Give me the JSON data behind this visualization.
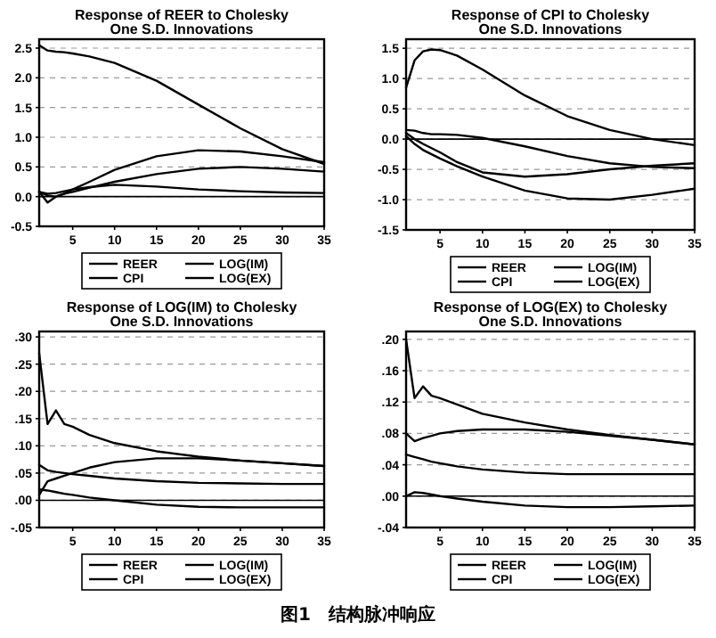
{
  "chart_data": [
    {
      "type": "line",
      "title": "Response of REER to Cholesky",
      "subtitle": "One S.D. Innovations",
      "x": [
        1,
        2,
        3,
        4,
        5,
        7,
        10,
        15,
        20,
        25,
        30,
        35
      ],
      "xlim": [
        1,
        35
      ],
      "xticks": [
        5,
        10,
        15,
        20,
        25,
        30,
        35
      ],
      "ylim": [
        -0.5,
        2.65
      ],
      "yticks": [
        {
          "value": -0.5,
          "label": "-0.5"
        },
        {
          "value": 0,
          "label": "0.0"
        },
        {
          "value": 0.5,
          "label": "0.5"
        },
        {
          "value": 1,
          "label": "1.0"
        },
        {
          "value": 1.5,
          "label": "1.5"
        },
        {
          "value": 2,
          "label": "2.0"
        },
        {
          "value": 2.5,
          "label": "2.5"
        }
      ],
      "grid": "y",
      "legend": "bottom",
      "ref_lines": [
        {
          "axis": "y",
          "value": 0
        }
      ],
      "series": [
        {
          "name": "REER",
          "color": "#000000",
          "values": [
            2.55,
            2.46,
            2.44,
            2.43,
            2.41,
            2.36,
            2.25,
            1.95,
            1.55,
            1.15,
            0.8,
            0.55
          ]
        },
        {
          "name": "CPI",
          "color": "#000000",
          "values": [
            0.08,
            0.05,
            0.06,
            0.09,
            0.12,
            0.16,
            0.2,
            0.17,
            0.12,
            0.09,
            0.07,
            0.06
          ]
        },
        {
          "name": "LOG(IM)",
          "color": "#000000",
          "values": [
            0.08,
            0.02,
            0.0,
            0.05,
            0.12,
            0.25,
            0.45,
            0.68,
            0.78,
            0.76,
            0.68,
            0.58
          ]
        },
        {
          "name": "LOG(EX)",
          "color": "#000000",
          "values": [
            0.08,
            -0.1,
            0.0,
            0.05,
            0.08,
            0.15,
            0.25,
            0.38,
            0.47,
            0.5,
            0.47,
            0.42
          ]
        }
      ]
    },
    {
      "type": "line",
      "title": "Response of CPI to Cholesky",
      "subtitle": "One S.D. Innovations",
      "x": [
        1,
        2,
        3,
        4,
        5,
        7,
        10,
        15,
        20,
        25,
        30,
        35
      ],
      "xlim": [
        1,
        35
      ],
      "xticks": [
        5,
        10,
        15,
        20,
        25,
        30,
        35
      ],
      "ylim": [
        -1.5,
        1.65
      ],
      "yticks": [
        {
          "value": -1.5,
          "label": "-1.5"
        },
        {
          "value": -1,
          "label": "-1.0"
        },
        {
          "value": -0.5,
          "label": "-0.5"
        },
        {
          "value": 0,
          "label": "0.0"
        },
        {
          "value": 0.5,
          "label": "0.5"
        },
        {
          "value": 1,
          "label": "1.0"
        },
        {
          "value": 1.5,
          "label": "1.5"
        }
      ],
      "grid": "y",
      "legend": "bottom",
      "ref_lines": [
        {
          "axis": "y",
          "value": 0
        }
      ],
      "series": [
        {
          "name": "REER",
          "color": "#000000",
          "values": [
            0.15,
            0.14,
            0.1,
            0.08,
            0.08,
            0.07,
            0.02,
            -0.12,
            -0.28,
            -0.4,
            -0.46,
            -0.48
          ]
        },
        {
          "name": "CPI",
          "color": "#000000",
          "values": [
            0.85,
            1.3,
            1.45,
            1.48,
            1.47,
            1.38,
            1.15,
            0.72,
            0.38,
            0.15,
            0.0,
            -0.1
          ]
        },
        {
          "name": "LOG(IM)",
          "color": "#000000",
          "values": [
            0.05,
            -0.08,
            -0.18,
            -0.25,
            -0.32,
            -0.45,
            -0.62,
            -0.85,
            -0.98,
            -1.0,
            -0.92,
            -0.82
          ]
        },
        {
          "name": "LOG(EX)",
          "color": "#000000",
          "values": [
            0.1,
            0.0,
            -0.08,
            -0.15,
            -0.22,
            -0.38,
            -0.55,
            -0.62,
            -0.58,
            -0.5,
            -0.44,
            -0.4
          ]
        }
      ]
    },
    {
      "type": "line",
      "title": "Response of LOG(IM) to Cholesky",
      "subtitle": "One S.D. Innovations",
      "x": [
        1,
        2,
        3,
        4,
        5,
        7,
        10,
        15,
        20,
        25,
        30,
        35
      ],
      "xlim": [
        1,
        35
      ],
      "xticks": [
        5,
        10,
        15,
        20,
        25,
        30,
        35
      ],
      "ylim": [
        -0.05,
        0.31
      ],
      "yticks": [
        {
          "value": -0.05,
          "label": "-.05"
        },
        {
          "value": 0,
          "label": ".00"
        },
        {
          "value": 0.05,
          "label": ".05"
        },
        {
          "value": 0.1,
          "label": ".10"
        },
        {
          "value": 0.15,
          "label": ".15"
        },
        {
          "value": 0.2,
          "label": ".20"
        },
        {
          "value": 0.25,
          "label": ".25"
        },
        {
          "value": 0.3,
          "label": ".30"
        }
      ],
      "grid": "y",
      "legend": "bottom",
      "ref_lines": [
        {
          "axis": "y",
          "value": 0
        }
      ],
      "series": [
        {
          "name": "REER",
          "color": "#000000",
          "values": [
            0.065,
            0.055,
            0.052,
            0.05,
            0.048,
            0.045,
            0.04,
            0.035,
            0.032,
            0.031,
            0.03,
            0.03
          ]
        },
        {
          "name": "CPI",
          "color": "#000000",
          "values": [
            0.02,
            0.018,
            0.015,
            0.012,
            0.01,
            0.005,
            0.0,
            -0.008,
            -0.012,
            -0.013,
            -0.013,
            -0.013
          ]
        },
        {
          "name": "LOG(IM)",
          "color": "#000000",
          "values": [
            0.27,
            0.14,
            0.165,
            0.14,
            0.135,
            0.12,
            0.105,
            0.09,
            0.08,
            0.073,
            0.068,
            0.063
          ]
        },
        {
          "name": "LOG(EX)",
          "color": "#000000",
          "values": [
            0.01,
            0.035,
            0.04,
            0.045,
            0.05,
            0.06,
            0.07,
            0.077,
            0.077,
            0.073,
            0.068,
            0.063
          ]
        }
      ]
    },
    {
      "type": "line",
      "title": "Response of LOG(EX) to Cholesky",
      "subtitle": "One S.D. Innovations",
      "x": [
        1,
        2,
        3,
        4,
        5,
        7,
        10,
        15,
        20,
        25,
        30,
        35
      ],
      "xlim": [
        1,
        35
      ],
      "xticks": [
        5,
        10,
        15,
        20,
        25,
        30,
        35
      ],
      "ylim": [
        -0.04,
        0.21
      ],
      "yticks": [
        {
          "value": -0.04,
          "label": "-.04"
        },
        {
          "value": 0,
          "label": ".00"
        },
        {
          "value": 0.04,
          "label": ".04"
        },
        {
          "value": 0.08,
          "label": ".08"
        },
        {
          "value": 0.12,
          "label": ".12"
        },
        {
          "value": 0.16,
          "label": ".16"
        },
        {
          "value": 0.2,
          "label": ".20"
        }
      ],
      "grid": "y",
      "legend": "bottom",
      "ref_lines": [
        {
          "axis": "y",
          "value": 0
        }
      ],
      "series": [
        {
          "name": "REER",
          "color": "#000000",
          "values": [
            0.053,
            0.05,
            0.047,
            0.044,
            0.042,
            0.038,
            0.034,
            0.03,
            0.028,
            0.028,
            0.028,
            0.028
          ]
        },
        {
          "name": "CPI",
          "color": "#000000",
          "values": [
            0.0,
            0.005,
            0.004,
            0.002,
            0.0,
            -0.003,
            -0.007,
            -0.012,
            -0.014,
            -0.014,
            -0.013,
            -0.012
          ]
        },
        {
          "name": "LOG(IM)",
          "color": "#000000",
          "values": [
            0.08,
            0.07,
            0.074,
            0.077,
            0.08,
            0.083,
            0.085,
            0.085,
            0.082,
            0.077,
            0.072,
            0.066
          ]
        },
        {
          "name": "LOG(EX)",
          "color": "#000000",
          "values": [
            0.2,
            0.125,
            0.14,
            0.128,
            0.125,
            0.117,
            0.105,
            0.094,
            0.085,
            0.078,
            0.072,
            0.066
          ]
        }
      ]
    },
    {
      "type": "other",
      "title": "图1　结构脉冲响应"
    }
  ]
}
